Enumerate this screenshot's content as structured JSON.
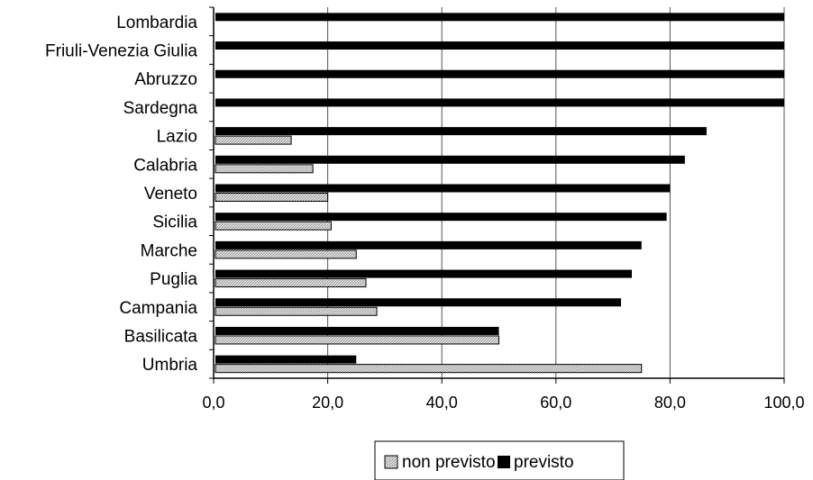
{
  "chart_data": {
    "type": "bar",
    "orientation": "horizontal",
    "categories": [
      "Lombardia",
      "Friuli-Venezia Giulia",
      "Abruzzo",
      "Sardegna",
      "Lazio",
      "Calabria",
      "Veneto",
      "Sicilia",
      "Marche",
      "Puglia",
      "Campania",
      "Basilicata",
      "Umbria"
    ],
    "series": [
      {
        "name": "non previsto",
        "values": [
          0,
          0,
          0,
          0,
          13.6,
          17.4,
          20.0,
          20.6,
          25.0,
          26.7,
          28.6,
          50.0,
          75.0
        ],
        "color": "#c8c8c8",
        "pattern": "dotted-gray"
      },
      {
        "name": "previsto",
        "values": [
          100,
          100,
          100,
          100,
          86.4,
          82.6,
          80.0,
          79.4,
          75.0,
          73.3,
          71.4,
          50.0,
          25.0
        ],
        "color": "#000000",
        "pattern": "solid-black"
      }
    ],
    "xlim": [
      0,
      100
    ],
    "xticks": [
      "0,0",
      "20,0",
      "40,0",
      "60,0",
      "80,0",
      "100,0"
    ],
    "xtick_values": [
      0,
      20,
      40,
      60,
      80,
      100
    ],
    "grid": "vertical",
    "legend": "bottom-center",
    "title": "",
    "xlabel": "",
    "ylabel": ""
  }
}
